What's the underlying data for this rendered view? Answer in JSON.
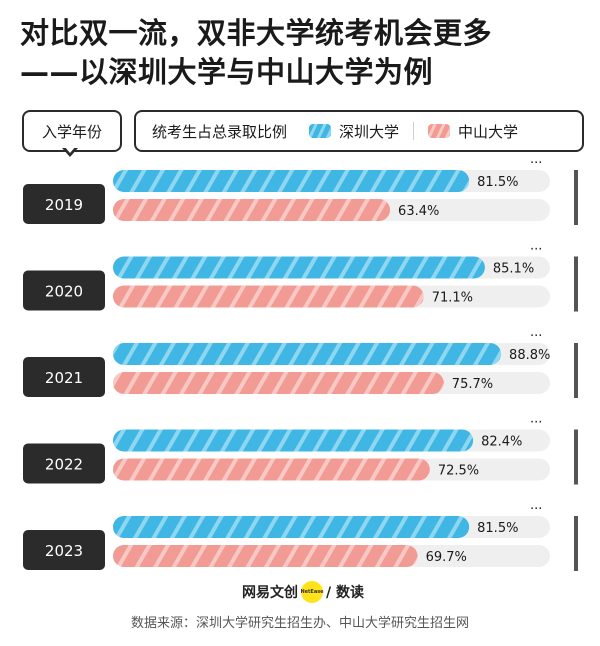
{
  "title": {
    "line1": "对比双一流，双非大学统考机会更多",
    "line2": "——以深圳大学与中山大学为例"
  },
  "header": {
    "year_label": "入学年份",
    "metric_label": "统考生占总录取比例"
  },
  "legend": [
    {
      "name": "深圳大学",
      "color": "#3fb6e3"
    },
    {
      "name": "中山大学",
      "color": "#f19b94"
    }
  ],
  "chart_data": {
    "type": "bar",
    "orientation": "horizontal",
    "categories": [
      "2019",
      "2020",
      "2021",
      "2022",
      "2023"
    ],
    "series": [
      {
        "name": "深圳大学",
        "values": [
          81.5,
          85.1,
          88.8,
          82.4,
          81.5
        ],
        "labels": [
          "81.5%",
          "85.1%",
          "88.8%",
          "82.4%",
          "81.5%"
        ]
      },
      {
        "name": "中山大学",
        "values": [
          63.4,
          71.1,
          75.7,
          72.5,
          69.7
        ],
        "labels": [
          "63.4%",
          "71.1%",
          "75.7%",
          "72.5%",
          "69.7%"
        ]
      }
    ],
    "xlim": [
      0,
      100
    ],
    "grid": false,
    "legend_position": "top"
  },
  "footer": {
    "logo_text_left": "网易文创",
    "logo_badge": "NetEase",
    "logo_text_right": "/ 数读",
    "source": "数据来源：深圳大学研究生招生办、中山大学研究生招生网"
  },
  "colors": {
    "blue": "#3fb6e3",
    "pink": "#f19b94",
    "track": "#efefef",
    "dark": "#2b2b2b"
  }
}
